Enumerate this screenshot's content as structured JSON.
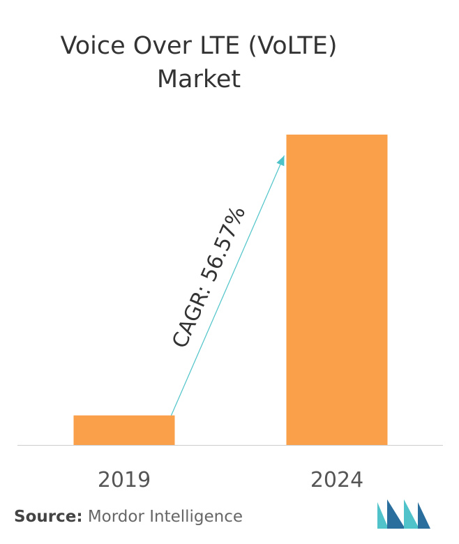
{
  "chart_data": {
    "type": "bar",
    "title_line1": "Voice Over LTE (VoLTE)",
    "title_line2": "Market",
    "categories": [
      "2019",
      "2024"
    ],
    "values": [
      1,
      10.5
    ],
    "ylim": [
      0,
      10.5
    ],
    "grid": false,
    "bar_color": "#FBA04A",
    "arrow_color": "#4DC3C8",
    "annotation": "CAGR: 56.57%"
  },
  "source": {
    "label": "Source:",
    "text": "Mordor Intelligence"
  },
  "colors": {
    "axis": "#cccccc",
    "tick_text": "#555555",
    "logo_dark": "#2a6e9e",
    "logo_light": "#4fc3c9"
  }
}
